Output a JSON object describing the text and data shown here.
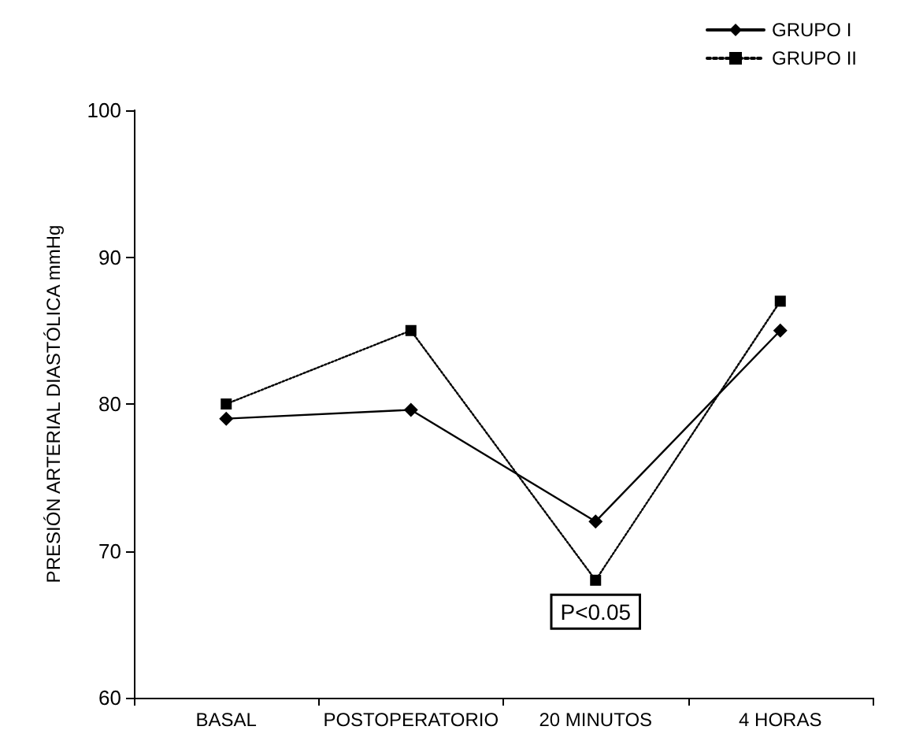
{
  "chart_data": {
    "type": "line",
    "ylabel": "PRESIÓN ARTERIAL DIASTÓLICA mmHg",
    "categories": [
      "BASAL",
      "POSTOPERATORIO",
      "20 MINUTOS",
      "4 HORAS"
    ],
    "series": [
      {
        "name": "GRUPO I",
        "color": "#000000",
        "values": [
          79,
          79.6,
          72,
          85
        ],
        "marker": "diamond",
        "line_style": "solid"
      },
      {
        "name": "GRUPO II",
        "color": "#000000",
        "values": [
          80,
          85,
          68,
          87
        ],
        "marker": "square",
        "line_style": "dotted"
      }
    ],
    "ylim": [
      60,
      100
    ],
    "yticks": [
      60,
      70,
      80,
      90,
      100
    ],
    "grid": false,
    "legend": "top right",
    "annotations": [
      {
        "text": "P<0.05",
        "x": "20 MINUTOS",
        "y": 68
      }
    ]
  }
}
